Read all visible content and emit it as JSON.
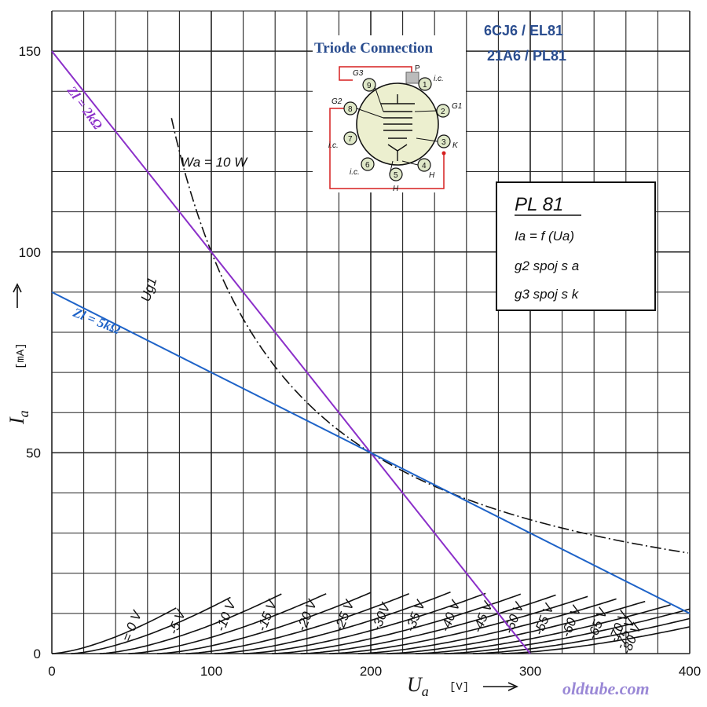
{
  "chart_data": {
    "type": "line",
    "title": "PL 81",
    "x_axis": {
      "symbol": "U",
      "subscript": "a",
      "unit": "[V]",
      "range": [
        0,
        400
      ],
      "ticks": [
        0,
        100,
        200,
        300,
        400
      ]
    },
    "y_axis": {
      "symbol": "I",
      "subscript": "a",
      "unit": "[mA]",
      "range": [
        0,
        160
      ],
      "ticks": [
        0,
        50,
        100,
        150
      ]
    },
    "grid": true,
    "tube_types": [
      "6CJ6 / EL81",
      "21A6 / PL81"
    ],
    "connection_title": "Triode Connection",
    "info_box": {
      "title": "PL 81",
      "lines": [
        "Ia  =  f (Ua)",
        "g2   spoj   s   a",
        "g3   spoj   s   k"
      ]
    },
    "power_limit_label": "Wa  =  10 W",
    "power_limit_watts": 10,
    "grid_prefix_label": "Ug1",
    "series": [
      {
        "name": "0 V",
        "label": "=  0 V",
        "ug1": 0,
        "v0": 0,
        "k": 0.0165,
        "vmax": 78
      },
      {
        "name": "-5 V",
        "label": "-5 V",
        "ug1": -5,
        "v0": 12,
        "k": 0.014,
        "vmax": 112
      },
      {
        "name": "-10 V",
        "label": "-10 V",
        "ug1": -10,
        "v0": 30,
        "k": 0.0122,
        "vmax": 145
      },
      {
        "name": "-15 V",
        "label": "-15 V",
        "ug1": -15,
        "v0": 48,
        "k": 0.0108,
        "vmax": 173
      },
      {
        "name": "-20 V",
        "label": "-20 V",
        "ug1": -20,
        "v0": 66,
        "k": 0.0098,
        "vmax": 200
      },
      {
        "name": "-25 V",
        "label": "-25 V",
        "ug1": -25,
        "v0": 84,
        "k": 0.009,
        "vmax": 225
      },
      {
        "name": "-30 V",
        "label": "-30V",
        "ug1": -30,
        "v0": 102,
        "k": 0.0085,
        "vmax": 250
      },
      {
        "name": "-35 V",
        "label": "-35 V",
        "ug1": -35,
        "v0": 120,
        "k": 0.008,
        "vmax": 272
      },
      {
        "name": "-40 V",
        "label": "-40 V",
        "ug1": -40,
        "v0": 138,
        "k": 0.0076,
        "vmax": 295
      },
      {
        "name": "-45 V",
        "label": "-45 V",
        "ug1": -45,
        "v0": 156,
        "k": 0.0072,
        "vmax": 316
      },
      {
        "name": "-50 V",
        "label": "-50 V",
        "ug1": -50,
        "v0": 174,
        "k": 0.0069,
        "vmax": 336
      },
      {
        "name": "-55 V",
        "label": "-55 V",
        "ug1": -55,
        "v0": 192,
        "k": 0.0066,
        "vmax": 355
      },
      {
        "name": "-60 V",
        "label": "-60 V",
        "ug1": -60,
        "v0": 210,
        "k": 0.0063,
        "vmax": 372
      },
      {
        "name": "-65 V",
        "label": "-65 V",
        "ug1": -65,
        "v0": 228,
        "k": 0.006,
        "vmax": 388
      },
      {
        "name": "-70 V",
        "label": "-70 V",
        "ug1": -70,
        "v0": 246,
        "k": 0.0058,
        "vmax": 400
      },
      {
        "name": "-75 V",
        "label": "-75 V",
        "ug1": -75,
        "v0": 264,
        "k": 0.0055,
        "vmax": 400
      },
      {
        "name": "-80 V",
        "label": "-80 V",
        "ug1": -80,
        "v0": 282,
        "k": 0.0052,
        "vmax": 400
      }
    ],
    "load_lines": [
      {
        "name": "Zl = 2kΩ",
        "points": [
          [
            0,
            150
          ],
          [
            300,
            0
          ]
        ],
        "color": "#8b2fc9"
      },
      {
        "name": "Zl = 5kΩ",
        "points": [
          [
            0,
            90
          ],
          [
            400,
            10
          ]
        ],
        "color": "#1e63c8"
      }
    ]
  },
  "pinout": {
    "pins": [
      "1",
      "2",
      "3",
      "4",
      "5",
      "6",
      "7",
      "8",
      "9"
    ],
    "labels": {
      "p": "P",
      "ic1": "i.c.",
      "g1": "G1",
      "k": "K",
      "h4": "H",
      "h5": "H",
      "ic6": "i.c.",
      "ic7": "i.c.",
      "g2": "G2",
      "g3": "G3"
    }
  },
  "watermark": "oldtube.com",
  "colors": {
    "purple": "#8b2fc9",
    "blue": "#1e63c8",
    "title_blue": "#2a4d8f",
    "wire_red": "#d61f1f",
    "pin_green": "#dfe8c8"
  }
}
